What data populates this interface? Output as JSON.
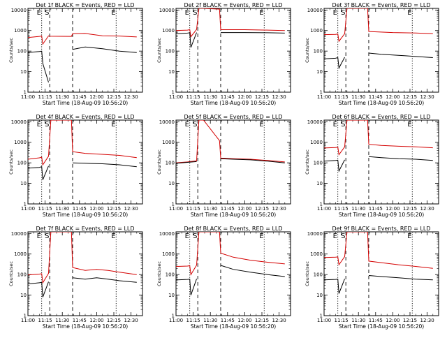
{
  "colors": {
    "events": "#000000",
    "lld": "#d40000",
    "frame": "#000000"
  },
  "shared": {
    "type": "line",
    "xlabel": "Start Time (18-Aug-09 10:56:20)",
    "ylabel": "Counts/sec",
    "x_tick_labels": [
      "11:00",
      "11:15",
      "11:30",
      "11:45",
      "12:00",
      "12:15",
      "12:30"
    ],
    "x_tick_minutes": [
      0,
      15,
      30,
      45,
      60,
      75,
      90
    ],
    "xlim_minutes": [
      0,
      100
    ],
    "y_tick_labels": [
      "1",
      "10",
      "100",
      "1000",
      "10000"
    ],
    "y_tick_values": [
      1,
      10,
      100,
      1000,
      10000
    ],
    "y_scale": "log",
    "ylim": [
      1,
      12000
    ],
    "markers": [
      {
        "label": "E",
        "minute": 12,
        "style": "dotted"
      },
      {
        "label": "S",
        "minute": 19,
        "style": "dashed"
      },
      {
        "label": "",
        "minute": 39,
        "style": "dashed"
      },
      {
        "label": "E",
        "minute": 77,
        "style": "dotted"
      }
    ],
    "grid": false,
    "legend": "in title"
  },
  "chart_data": [
    {
      "title": "Det 1f BLACK = Events, RED = LLD",
      "series": [
        {
          "color": "red",
          "x": [
            0,
            10,
            12,
            13,
            18,
            19,
            38,
            39,
            50,
            65,
            80,
            95
          ],
          "y": [
            460,
            520,
            540,
            220,
            550,
            530,
            520,
            700,
            720,
            560,
            540,
            490
          ]
        },
        {
          "color": "black",
          "x": [
            0,
            10,
            12,
            13,
            18,
            19,
            38,
            39,
            50,
            65,
            80,
            95
          ],
          "y": [
            85,
            95,
            100,
            25,
            3,
            null,
            null,
            120,
            160,
            130,
            100,
            85
          ]
        }
      ]
    },
    {
      "title": "Det 2f BLACK = Events, RED = LLD",
      "series": [
        {
          "color": "red",
          "x": [
            0,
            10,
            12,
            13,
            18,
            20,
            24,
            38,
            39,
            60,
            80,
            95
          ],
          "y": [
            1000,
            1050,
            1100,
            500,
            1150,
            12000,
            12000,
            11000,
            1100,
            1100,
            1050,
            1000
          ]
        },
        {
          "color": "black",
          "x": [
            0,
            10,
            12,
            13,
            18,
            19,
            38,
            39,
            60,
            80,
            95
          ],
          "y": [
            700,
            750,
            780,
            150,
            800,
            null,
            null,
            800,
            800,
            780,
            750
          ]
        }
      ]
    },
    {
      "title": "Det 3f BLACK = Events, RED = LLD",
      "series": [
        {
          "color": "red",
          "x": [
            0,
            10,
            12,
            13,
            18,
            20,
            38,
            39,
            60,
            80,
            95
          ],
          "y": [
            630,
            650,
            680,
            300,
            700,
            12000,
            12000,
            900,
            800,
            760,
            700
          ]
        },
        {
          "color": "black",
          "x": [
            0,
            10,
            12,
            13,
            18,
            19,
            38,
            39,
            50,
            70,
            95
          ],
          "y": [
            42,
            45,
            48,
            15,
            50,
            null,
            null,
            80,
            70,
            60,
            48
          ]
        }
      ]
    },
    {
      "title": "Det 4f BLACK = Events, RED = LLD",
      "series": [
        {
          "color": "red",
          "x": [
            0,
            10,
            12,
            13,
            18,
            20,
            38,
            39,
            50,
            65,
            80,
            95
          ],
          "y": [
            150,
            175,
            190,
            80,
            210,
            12000,
            12000,
            350,
            290,
            260,
            230,
            180
          ]
        },
        {
          "color": "black",
          "x": [
            0,
            10,
            12,
            13,
            18,
            19,
            38,
            39,
            50,
            65,
            80,
            95
          ],
          "y": [
            55,
            60,
            65,
            15,
            70,
            null,
            null,
            100,
            95,
            90,
            80,
            65
          ]
        }
      ]
    },
    {
      "title": "Det 5f BLACK = Events, RED = LLD",
      "series": [
        {
          "color": "red",
          "x": [
            0,
            10,
            18,
            20,
            24,
            38,
            39,
            50,
            65,
            80,
            95
          ],
          "y": [
            100,
            110,
            125,
            12000,
            12000,
            1200,
            170,
            160,
            150,
            130,
            110
          ]
        },
        {
          "color": "black",
          "x": [
            0,
            10,
            18,
            19,
            38,
            39,
            50,
            65,
            80,
            95
          ],
          "y": [
            95,
            105,
            115,
            null,
            null,
            160,
            150,
            140,
            120,
            100
          ]
        }
      ]
    },
    {
      "title": "Det 6f BLACK = Events, RED = LLD",
      "series": [
        {
          "color": "red",
          "x": [
            0,
            10,
            12,
            13,
            18,
            20,
            38,
            39,
            50,
            65,
            80,
            95
          ],
          "y": [
            530,
            560,
            580,
            250,
            600,
            12000,
            12000,
            800,
            700,
            640,
            600,
            540
          ]
        },
        {
          "color": "black",
          "x": [
            0,
            10,
            12,
            13,
            18,
            19,
            38,
            39,
            50,
            65,
            80,
            95
          ],
          "y": [
            120,
            130,
            135,
            40,
            140,
            null,
            null,
            200,
            180,
            160,
            150,
            130
          ]
        }
      ]
    },
    {
      "title": "Det 7f BLACK = Events, RED = LLD",
      "series": [
        {
          "color": "red",
          "x": [
            0,
            10,
            12,
            13,
            18,
            20,
            38,
            39,
            50,
            60,
            70,
            80,
            95
          ],
          "y": [
            95,
            105,
            110,
            40,
            115,
            12000,
            12000,
            220,
            160,
            180,
            160,
            130,
            100
          ]
        },
        {
          "color": "black",
          "x": [
            0,
            10,
            12,
            13,
            18,
            19,
            38,
            39,
            50,
            60,
            70,
            80,
            95
          ],
          "y": [
            35,
            40,
            42,
            8,
            45,
            null,
            null,
            70,
            60,
            70,
            60,
            50,
            42
          ]
        }
      ]
    },
    {
      "title": "Det 8f BLACK = Events, RED = LLD",
      "series": [
        {
          "color": "red",
          "x": [
            0,
            10,
            12,
            13,
            18,
            20,
            24,
            38,
            39,
            50,
            65,
            80,
            95
          ],
          "y": [
            250,
            260,
            270,
            100,
            290,
            12000,
            12000,
            12000,
            1100,
            700,
            500,
            400,
            330
          ]
        },
        {
          "color": "black",
          "x": [
            0,
            10,
            12,
            13,
            18,
            19,
            38,
            39,
            50,
            65,
            80,
            95
          ],
          "y": [
            55,
            58,
            60,
            10,
            62,
            null,
            null,
            280,
            180,
            130,
            100,
            80
          ]
        }
      ]
    },
    {
      "title": "Det 9f BLACK = Events, RED = LLD",
      "series": [
        {
          "color": "red",
          "x": [
            0,
            10,
            12,
            13,
            18,
            20,
            38,
            39,
            50,
            65,
            80,
            95
          ],
          "y": [
            680,
            700,
            720,
            300,
            750,
            12000,
            12000,
            450,
            380,
            300,
            250,
            200
          ]
        },
        {
          "color": "black",
          "x": [
            0,
            10,
            12,
            13,
            18,
            19,
            38,
            39,
            50,
            65,
            80,
            95
          ],
          "y": [
            55,
            58,
            60,
            12,
            62,
            null,
            null,
            90,
            80,
            70,
            60,
            55
          ]
        }
      ]
    }
  ]
}
